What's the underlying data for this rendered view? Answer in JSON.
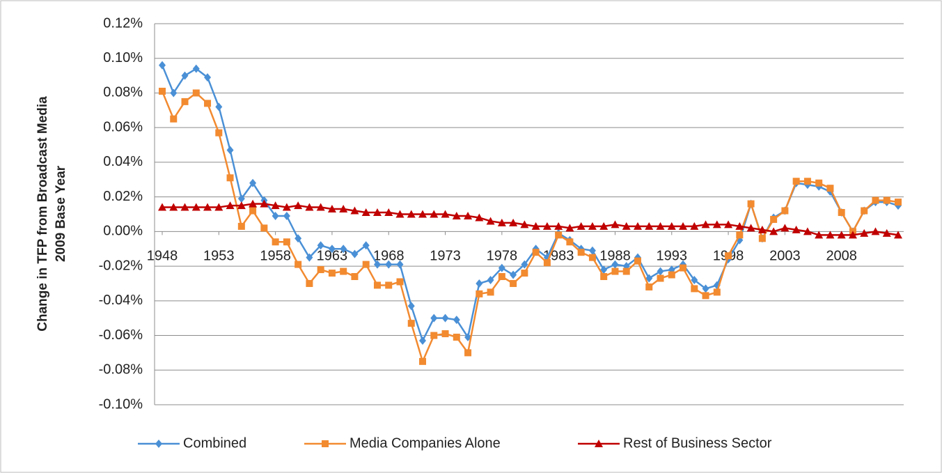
{
  "chart_data": {
    "type": "line",
    "ylabel": [
      "Change in TFP from Broadcast Media",
      "2009 Base Year"
    ],
    "x": [
      1948,
      1949,
      1950,
      1951,
      1952,
      1953,
      1954,
      1955,
      1956,
      1957,
      1958,
      1959,
      1960,
      1961,
      1962,
      1963,
      1964,
      1965,
      1966,
      1967,
      1968,
      1969,
      1970,
      1971,
      1972,
      1973,
      1974,
      1975,
      1976,
      1977,
      1978,
      1979,
      1980,
      1981,
      1982,
      1983,
      1984,
      1985,
      1986,
      1987,
      1988,
      1989,
      1990,
      1991,
      1992,
      1993,
      1994,
      1995,
      1996,
      1997,
      1998,
      1999,
      2000,
      2001,
      2002,
      2003,
      2004,
      2005,
      2006,
      2007,
      2008,
      2009,
      2010,
      2011,
      2012,
      2013
    ],
    "xlim": [
      1948,
      2013
    ],
    "xticks": [
      1948,
      1953,
      1958,
      1963,
      1968,
      1973,
      1978,
      1983,
      1988,
      1993,
      1998,
      2003,
      2008
    ],
    "ylim": [
      -0.1,
      0.12
    ],
    "yticks": [
      {
        "value": -0.1,
        "label": "-0.10%"
      },
      {
        "value": -0.08,
        "label": "-0.08%"
      },
      {
        "value": -0.06,
        "label": "-0.06%"
      },
      {
        "value": -0.04,
        "label": "-0.04%"
      },
      {
        "value": -0.02,
        "label": "-0.02%"
      },
      {
        "value": 0,
        "label": "0.00%"
      },
      {
        "value": 0.02,
        "label": "0.02%"
      },
      {
        "value": 0.04,
        "label": "0.04%"
      },
      {
        "value": 0.06,
        "label": "0.06%"
      },
      {
        "value": 0.08,
        "label": "0.08%"
      },
      {
        "value": 0.1,
        "label": "0.10%"
      },
      {
        "value": 0.12,
        "label": "0.12%"
      }
    ],
    "grid": true,
    "legend": "bottom",
    "series": [
      {
        "name": "Combined",
        "color": "#4a90d6",
        "marker": "diamond",
        "values": [
          0.096,
          0.08,
          0.09,
          0.094,
          0.089,
          0.072,
          0.047,
          0.019,
          0.028,
          0.018,
          0.009,
          0.009,
          -0.004,
          -0.015,
          -0.008,
          -0.01,
          -0.01,
          -0.013,
          -0.008,
          -0.019,
          -0.019,
          -0.019,
          -0.043,
          -0.063,
          -0.05,
          -0.05,
          -0.051,
          -0.061,
          -0.03,
          -0.028,
          -0.021,
          -0.025,
          -0.019,
          -0.01,
          -0.015,
          -0.001,
          -0.005,
          -0.01,
          -0.011,
          -0.022,
          -0.019,
          -0.02,
          -0.015,
          -0.027,
          -0.023,
          -0.022,
          -0.019,
          -0.028,
          -0.033,
          -0.031,
          -0.016,
          -0.005,
          0.016,
          -0.004,
          0.008,
          0.012,
          0.028,
          0.027,
          0.026,
          0.023,
          0.011,
          0.0,
          0.012,
          0.017,
          0.017,
          0.015
        ]
      },
      {
        "name": "Media Companies Alone",
        "color": "#f28a30",
        "marker": "square",
        "values": [
          0.081,
          0.065,
          0.075,
          0.08,
          0.074,
          0.057,
          0.031,
          0.003,
          0.012,
          0.002,
          -0.006,
          -0.006,
          -0.019,
          -0.03,
          -0.022,
          -0.024,
          -0.023,
          -0.026,
          -0.019,
          -0.031,
          -0.031,
          -0.029,
          -0.053,
          -0.075,
          -0.06,
          -0.059,
          -0.061,
          -0.07,
          -0.036,
          -0.035,
          -0.026,
          -0.03,
          -0.024,
          -0.012,
          -0.018,
          -0.002,
          -0.006,
          -0.012,
          -0.015,
          -0.026,
          -0.023,
          -0.023,
          -0.017,
          -0.032,
          -0.027,
          -0.025,
          -0.021,
          -0.033,
          -0.037,
          -0.035,
          -0.014,
          -0.002,
          0.016,
          -0.004,
          0.007,
          0.012,
          0.029,
          0.029,
          0.028,
          0.025,
          0.011,
          0.0,
          0.012,
          0.018,
          0.018,
          0.017
        ]
      },
      {
        "name": "Rest of Business Sector",
        "color": "#c00000",
        "marker": "triangle",
        "values": [
          0.014,
          0.014,
          0.014,
          0.014,
          0.014,
          0.014,
          0.015,
          0.015,
          0.016,
          0.016,
          0.015,
          0.014,
          0.015,
          0.014,
          0.014,
          0.013,
          0.013,
          0.012,
          0.011,
          0.011,
          0.011,
          0.01,
          0.01,
          0.01,
          0.01,
          0.01,
          0.009,
          0.009,
          0.008,
          0.006,
          0.005,
          0.005,
          0.004,
          0.003,
          0.003,
          0.003,
          0.002,
          0.003,
          0.003,
          0.003,
          0.004,
          0.003,
          0.003,
          0.003,
          0.003,
          0.003,
          0.003,
          0.003,
          0.004,
          0.004,
          0.004,
          0.003,
          0.002,
          0.001,
          0.0,
          0.002,
          0.001,
          0.0,
          -0.002,
          -0.002,
          -0.002,
          -0.002,
          -0.001,
          0.0,
          -0.001,
          -0.002
        ]
      }
    ]
  }
}
